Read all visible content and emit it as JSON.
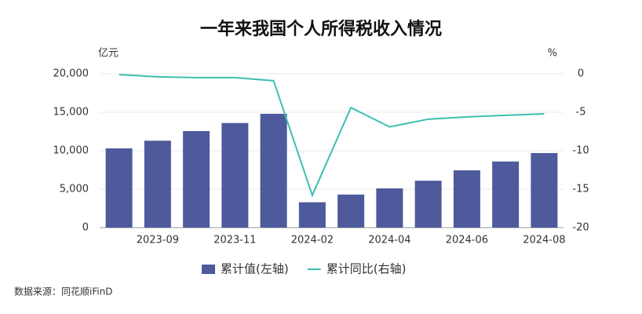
{
  "chart_data": {
    "type": "combo",
    "title": "一年来我国个人所得税收入情况",
    "y_label": "亿元",
    "y2_label": "%",
    "source": "数据来源：同花顺iFinD",
    "categories": [
      null,
      "2023-09",
      null,
      "2023-11",
      null,
      "2024-02",
      null,
      "2024-04",
      null,
      "2024-06",
      null,
      "2024-08"
    ],
    "series": [
      {
        "name": "累计值(左轴)",
        "type": "bar",
        "color": "#4e5a9c",
        "values": [
          10300,
          11300,
          12550,
          13600,
          14800,
          3300,
          4300,
          5100,
          6100,
          7450,
          8600,
          9700
        ]
      },
      {
        "name": "累计同比(右轴)",
        "type": "line",
        "axis": "y2",
        "color": "#3dbfb0",
        "values": [
          -0.1,
          -0.4,
          -0.5,
          -0.5,
          -0.9,
          -15.8,
          -4.4,
          -6.9,
          -5.9,
          -5.6,
          -5.4,
          -5.2
        ]
      }
    ],
    "ylim": [
      0,
      20000
    ],
    "yticks": [
      0,
      {
        "value": 5000,
        "label": "5,000"
      },
      {
        "value": 10000,
        "label": "10,000"
      },
      {
        "value": 15000,
        "label": "15,000"
      },
      {
        "value": 20000,
        "label": "20,000"
      }
    ],
    "y2lim": [
      -20,
      0
    ],
    "y2ticks": [
      -20,
      -15,
      -10,
      -5,
      0
    ],
    "grid": true
  }
}
